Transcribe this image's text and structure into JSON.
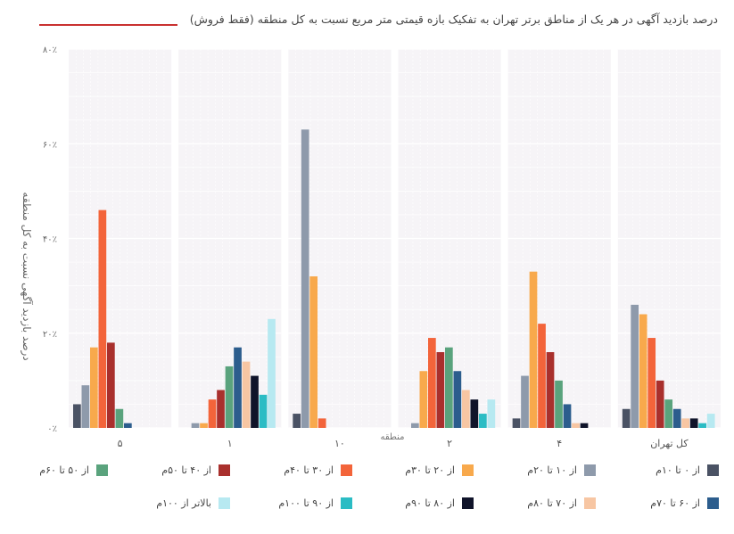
{
  "chart_data": {
    "type": "bar",
    "title": "درصد بازدید آگهی در هر یک از مناطق برتر تهران به تفکیک بازه قیمتی متر مربع نسبت به کل منطقه (فقط فروش)",
    "xlabel": "منطقه",
    "ylabel": "درصد بازدید آگهی نسبت به کل منطقه",
    "ylim": [
      0,
      80
    ],
    "yticks": [
      "۰٪",
      "۲۰٪",
      "۴۰٪",
      "۶۰٪",
      "۸۰٪"
    ],
    "grid": true,
    "legend_position": "bottom",
    "categories": [
      "۵",
      "۱",
      "۱۰",
      "۲",
      "۴",
      "کل تهران"
    ],
    "series": [
      {
        "name": "از ۰ تا ۱۰م",
        "color": "#4a5264",
        "values": [
          5,
          0,
          3,
          0,
          2,
          4
        ]
      },
      {
        "name": "از ۱۰ تا ۲۰م",
        "color": "#8e9aab",
        "values": [
          9,
          1,
          63,
          1,
          11,
          26
        ]
      },
      {
        "name": "از ۲۰ تا ۳۰م",
        "color": "#f8a94c",
        "values": [
          17,
          1,
          32,
          12,
          33,
          24
        ]
      },
      {
        "name": "از ۳۰ تا ۴۰م",
        "color": "#f3643a",
        "values": [
          46,
          6,
          2,
          19,
          22,
          19
        ]
      },
      {
        "name": "از ۴۰ تا ۵۰م",
        "color": "#a9302d",
        "values": [
          18,
          8,
          0,
          16,
          16,
          10
        ]
      },
      {
        "name": "از ۵۰ تا ۶۰م",
        "color": "#5aa37d",
        "values": [
          4,
          13,
          0,
          17,
          10,
          6
        ]
      },
      {
        "name": "از ۶۰ تا ۷۰م",
        "color": "#2c5d8d",
        "values": [
          1,
          17,
          0,
          12,
          5,
          4
        ]
      },
      {
        "name": "از ۷۰ تا ۸۰م",
        "color": "#f7c6a3",
        "values": [
          0,
          14,
          0,
          8,
          1,
          2
        ]
      },
      {
        "name": "از ۸۰ تا ۹۰م",
        "color": "#10142a",
        "values": [
          0,
          11,
          0,
          6,
          1,
          2
        ]
      },
      {
        "name": "از ۹۰ تا ۱۰۰م",
        "color": "#2bbcc4",
        "values": [
          0,
          7,
          0,
          3,
          0,
          1
        ]
      },
      {
        "name": "بالاتر از ۱۰۰م",
        "color": "#b7e9f1",
        "values": [
          0,
          23,
          0,
          6,
          0,
          3
        ]
      }
    ]
  }
}
